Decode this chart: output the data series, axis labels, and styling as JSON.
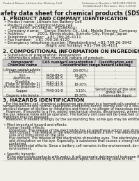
{
  "bg_color": "#f0efe8",
  "title": "Safety data sheet for chemical products (SDS)",
  "header_left": "Product Name: Lithium Ion Battery Cell",
  "header_right_1": "Substance Number: SER-049-00010",
  "header_right_2": "Established / Revision: Dec.1.2010",
  "section1_title": "1. PRODUCT AND COMPANY IDENTIFICATION",
  "section1_lines": [
    " • Product name: Lithium Ion Battery Cell",
    " • Product code: Cylindrical-type cell",
    "      (IFR18650, IFR18650L, IFR18650A)",
    " • Company name:    Sanyo Electric Co., Ltd., Mobile Energy Company",
    " • Address:           2001, Kamionkubo, Sumoto-City, Hyogo, Japan",
    " • Telephone number:  +81-799-26-4111",
    " • Fax number:   +81-799-26-4120",
    " • Emergency telephone number (Weekdaytime) +81-799-26-3942",
    "                                   (Night and holiday) +81-799-26-4101"
  ],
  "section2_title": "2. COMPOSITIONAL INFORMATION ON INGREDIENTS",
  "section2_intro": " • Substance or preparation: Preparation",
  "section2_sub": " • Information about the chemical nature of product:",
  "table_col_headers": [
    "Component/\nChemical name",
    "CAS number",
    "Concentration /\nConcentration range",
    "Classification and\nhazard labeling"
  ],
  "table_rows": [
    [
      "Lithium oxide/carbide\n(LiMn₂O/LiCoO₂)",
      "-",
      "(30-80%)",
      "-"
    ],
    [
      "Iron",
      "7439-89-6",
      "10-20%",
      "-"
    ],
    [
      "Aluminum",
      "7429-90-5",
      "2-8%",
      "-"
    ],
    [
      "Graphite\n(Flake or graphite-1)\n(Artificial graphite-1)",
      "7782-42-5\n7782-42-5",
      "10-20%",
      "-"
    ],
    [
      "Copper",
      "7440-50-8",
      "5-15%",
      "Sensitization of the skin\ngroup No.2"
    ],
    [
      "Organic electrolyte",
      "-",
      "10-20%",
      "Inflammable liquid"
    ]
  ],
  "section3_title": "3. HAZARDS IDENTIFICATION",
  "section3_paras": [
    "   For the battery cell, chemical substances are stored in a hermetically sealed metal case, designed to withstand",
    "temperatures during normal operations-conditions during normal use. As a result, during normal use, there is no",
    "physical danger of ignition or inhalation and there's no danger of hazardous materials leakage.",
    "   However, if exposed to a fire, added mechanical shocks, decomposed, where electrical-shorting may occur,",
    "the gas release valve will be operated. The battery cell case will be breached or the carbons, hazardous",
    "materials may be released.",
    "   Moreover, if heated strongly by the surrounding fire, some gas may be emitted.",
    "",
    " • Most important hazard and effects:",
    "    Human health effects:",
    "      Inhalation: The release of the electrolyte has an anesthesia action and stimulates in respiratory tract.",
    "      Skin contact: The release of the electrolyte stimulates a skin. The electrolyte skin contact causes a",
    "      sore and stimulation on the skin.",
    "      Eye contact: The release of the electrolyte stimulates eyes. The electrolyte eye contact causes a sore",
    "      and stimulation on the eye. Especially, a substance that causes a strong inflammation of the eyes is",
    "      contained.",
    "      Environmental effects: Since a battery cell remains in the environment, do not throw out it into the",
    "      environment.",
    "",
    " • Specific hazards:",
    "    If the electrolyte contacts with water, it will generate detrimental hydrogen fluoride.",
    "    Since the used electrolyte is inflammable liquid, do not bring close to fire."
  ],
  "line_color": "#999999",
  "table_header_bg": "#cccccc",
  "text_color": "#111111",
  "header_text_color": "#555555"
}
